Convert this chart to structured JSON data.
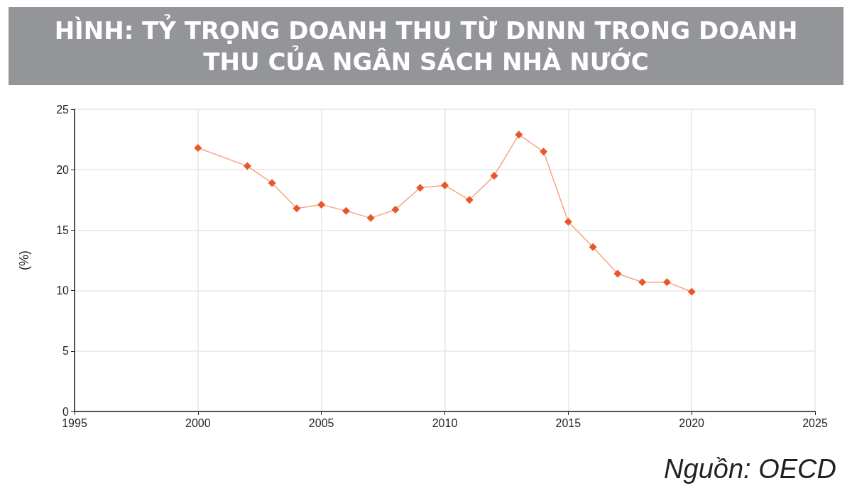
{
  "chart_data": {
    "type": "line",
    "title": "HÌNH: TỶ TRỌNG DOANH THU TỪ DNNN TRONG DOANH THU CỦA NGÂN SÁCH NHÀ NƯỚC",
    "ylabel": "(%)",
    "x": [
      2000,
      2002,
      2003,
      2004,
      2005,
      2006,
      2007,
      2008,
      2009,
      2010,
      2011,
      2012,
      2013,
      2014,
      2015,
      2016,
      2017,
      2018,
      2019,
      2020
    ],
    "series": [
      {
        "color": "#e8562a",
        "values": [
          21.8,
          20.3,
          18.9,
          16.8,
          17.1,
          16.6,
          16.0,
          16.7,
          18.5,
          18.7,
          17.5,
          19.5,
          22.9,
          21.5,
          15.7,
          13.6,
          11.4,
          10.7,
          10.7,
          9.9
        ]
      }
    ],
    "xlim": [
      1995,
      2025
    ],
    "xticks": [
      1995,
      2000,
      2005,
      2010,
      2015,
      2020,
      2025
    ],
    "ylim": [
      0,
      25
    ],
    "yticks": [
      0,
      5,
      10,
      15,
      20,
      25
    ],
    "grid": true,
    "marker": "diamond",
    "line_style": "solid",
    "annotations": [
      "Nguồn: OECD"
    ]
  }
}
